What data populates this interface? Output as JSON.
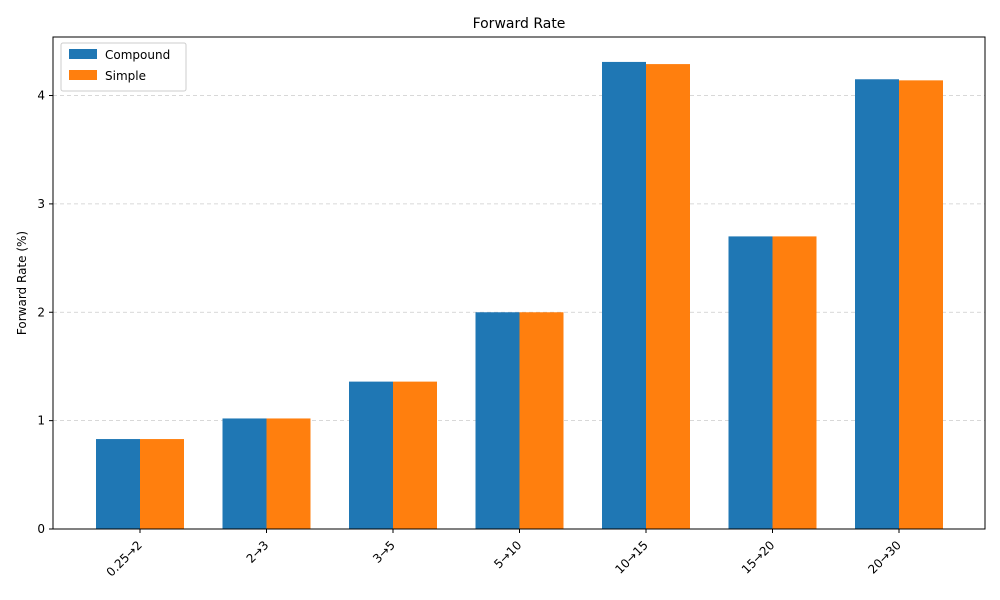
{
  "chart_data": {
    "type": "bar",
    "title": "Forward Rate",
    "xlabel": "",
    "ylabel": "Forward Rate (%)",
    "categories": [
      "0.25→2",
      "2→3",
      "3→5",
      "5→10",
      "10→15",
      "15→20",
      "20→30"
    ],
    "series": [
      {
        "name": "Compound",
        "color": "#1f77b4",
        "values": [
          0.83,
          1.02,
          1.36,
          2.0,
          4.31,
          2.7,
          4.15
        ]
      },
      {
        "name": "Simple",
        "color": "#ff7f0e",
        "values": [
          0.83,
          1.02,
          1.36,
          2.0,
          4.29,
          2.7,
          4.14
        ]
      }
    ],
    "ylim": [
      0,
      4.54
    ],
    "yticks": [
      0,
      1,
      2,
      3,
      4
    ],
    "grid": "y-dashed",
    "legend_position": "top-left"
  }
}
